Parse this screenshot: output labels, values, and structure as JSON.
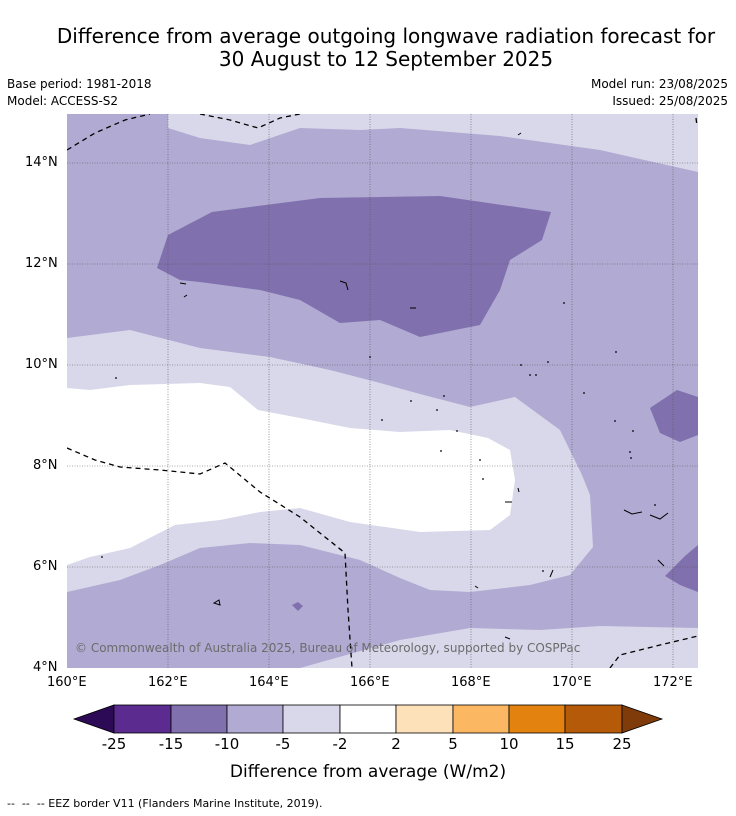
{
  "title": {
    "line1": "Difference from average outgoing longwave radiation forecast for",
    "line2": "30 August to 12 September 2025"
  },
  "meta": {
    "base_period": "Base period: 1981-2018",
    "model": "Model: ACCESS-S2",
    "model_run": "Model run: 23/08/2025",
    "issued": "Issued: 25/08/2025"
  },
  "map": {
    "lat_labels": [
      "14°N",
      "12°N",
      "10°N",
      "8°N",
      "6°N",
      "4°N"
    ],
    "lon_labels": [
      "160°E",
      "162°E",
      "164°E",
      "166°E",
      "168°E",
      "170°E",
      "172°E"
    ],
    "copyright": "© Commonwealth of Australia 2025, Bureau of Meteorology, supported by COSPPac"
  },
  "colorbar": {
    "label": "Difference from average (W/m2)",
    "ticks": [
      "-25",
      "-15",
      "-10",
      "-5",
      "-2",
      "2",
      "5",
      "10",
      "15",
      "25"
    ],
    "colors": [
      "#2d0a55",
      "#5b2b8f",
      "#8070ad",
      "#b1aad2",
      "#d8d8ea",
      "#ffffff",
      "#fde1b8",
      "#fbb762",
      "#e3820f",
      "#b45a08",
      "#7f3c0a"
    ]
  },
  "footer": {
    "legend_line": "--  --  -- EEZ border V11 (Flanders Marine Institute, 2019)."
  }
}
